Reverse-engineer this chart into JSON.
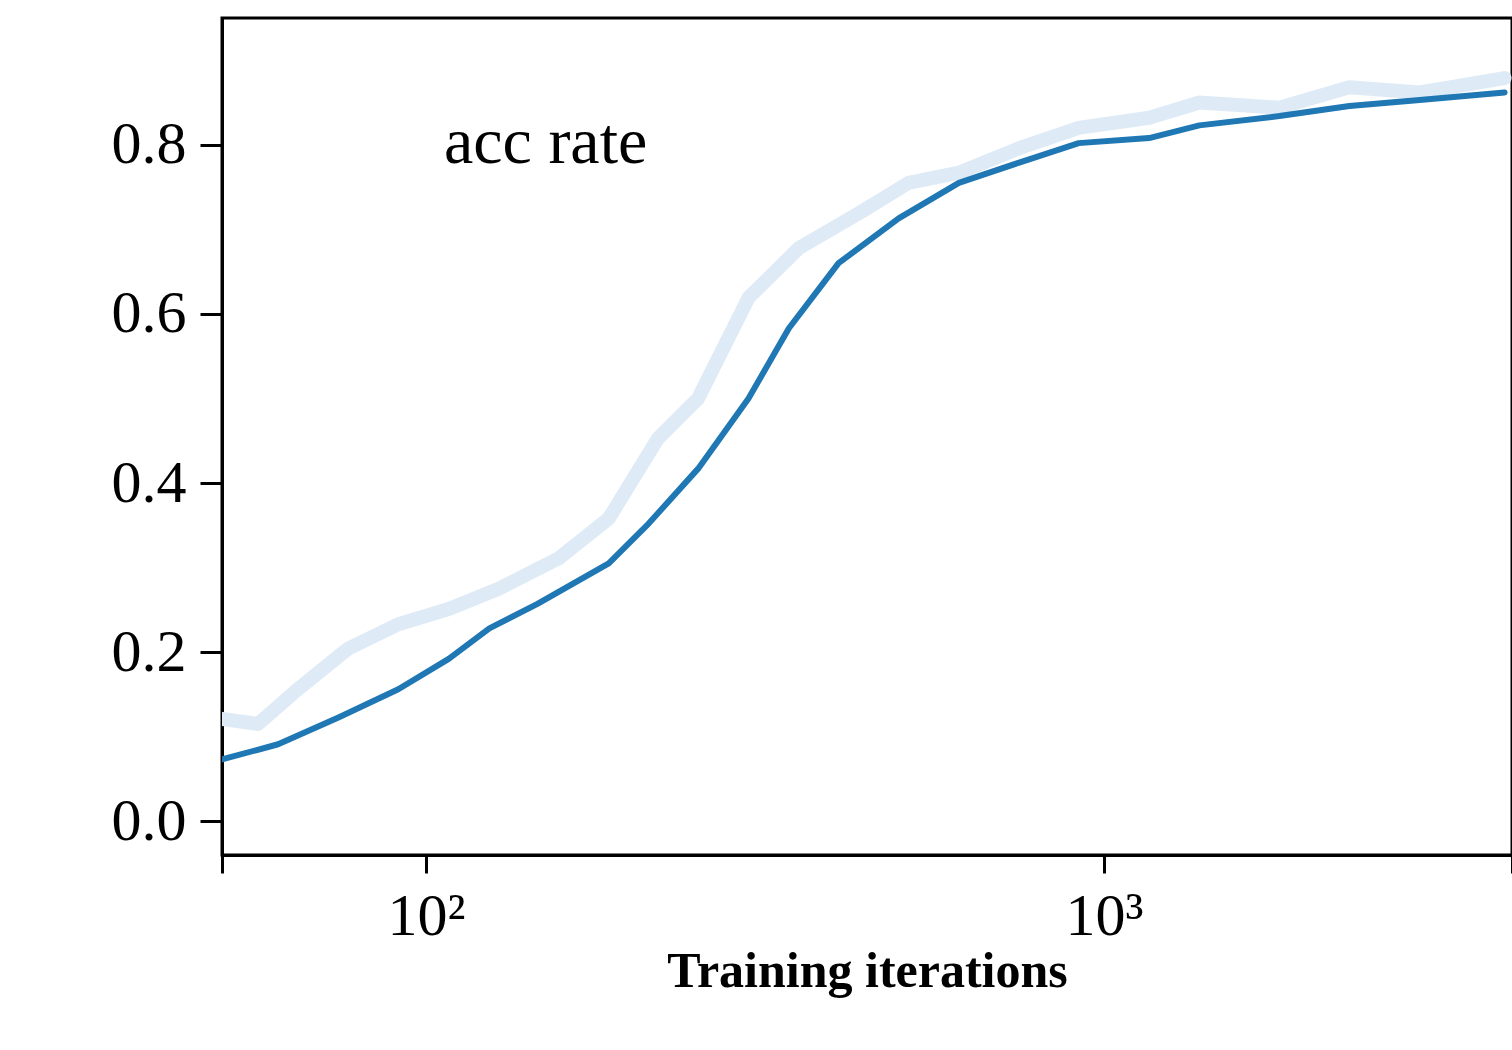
{
  "chart_data": {
    "type": "line",
    "xlabel": "Training iterations",
    "log": "x",
    "grid": false,
    "annotations": [
      "acc rate"
    ],
    "xlim": [
      50,
      4000
    ],
    "ylim": [
      -0.04,
      0.95
    ],
    "xticks": [
      {
        "value": 50,
        "label": null
      },
      {
        "value": 100,
        "label": "10²"
      },
      {
        "value": 1000,
        "label": "10³"
      },
      {
        "value": 4000,
        "label": null
      }
    ],
    "yticks": [
      {
        "value": 0,
        "label": "0.0"
      },
      0.2,
      0.4,
      0.6,
      0.8
    ],
    "series": [
      {
        "color": "#deebf7",
        "x": [
          50,
          56.5,
          64.7,
          76.7,
          91,
          108,
          128,
          157,
          186,
          220,
          252,
          299,
          355,
          435,
          515,
          611,
          750,
          918,
          1166,
          1383,
          1815,
          2303,
          2923,
          3900
        ],
        "values": [
          0.121,
          0.115,
          0.156,
          0.204,
          0.233,
          0.251,
          0.275,
          0.311,
          0.358,
          0.453,
          0.5,
          0.619,
          0.678,
          0.719,
          0.755,
          0.767,
          0.796,
          0.82,
          0.832,
          0.85,
          0.844,
          0.868,
          0.862,
          0.879
        ]
      },
      {
        "color": "#1f77b4",
        "x": [
          50,
          60.5,
          74.4,
          91,
          108,
          124,
          146,
          186,
          213,
          252,
          299,
          343,
          406,
          498,
          611,
          750,
          918,
          1166,
          1383,
          1815,
          2303,
          2923,
          3900
        ],
        "values": [
          0.073,
          0.091,
          0.123,
          0.156,
          0.192,
          0.228,
          0.257,
          0.305,
          0.352,
          0.417,
          0.5,
          0.583,
          0.66,
          0.713,
          0.755,
          0.779,
          0.802,
          0.808,
          0.823,
          0.834,
          0.846,
          0.853,
          0.862
        ]
      }
    ]
  }
}
